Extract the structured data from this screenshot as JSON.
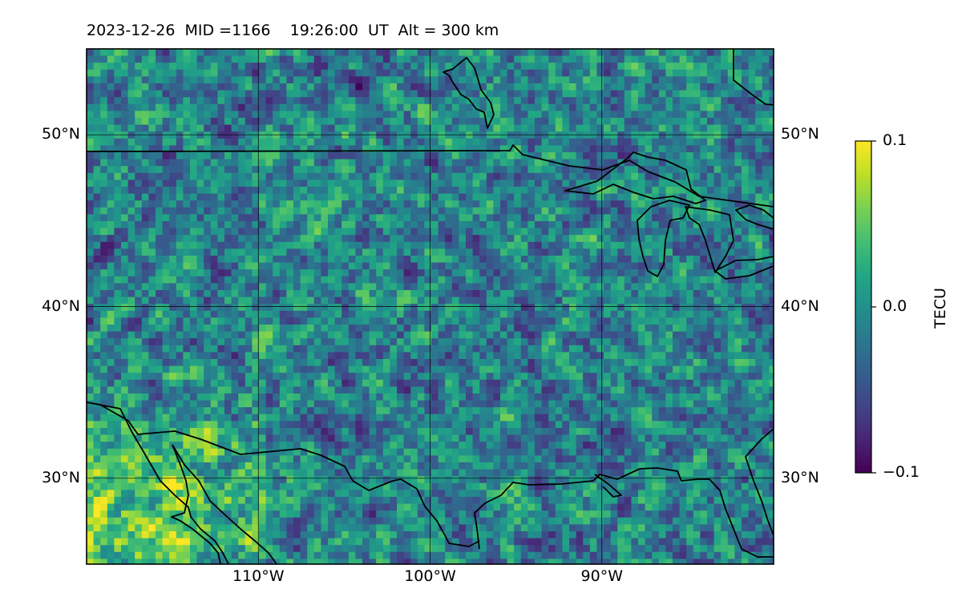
{
  "title": {
    "date": "2023-12-26",
    "mid": "MID =1166",
    "time": "19:26:00  UT",
    "alt": "Alt = 300 km"
  },
  "map": {
    "lon_range": [
      -120,
      -80
    ],
    "lat_range": [
      25,
      55
    ],
    "lon_ticks": [
      {
        "value": -110,
        "label": "110°W"
      },
      {
        "value": -100,
        "label": "100°W"
      },
      {
        "value": -90,
        "label": "90°W"
      }
    ],
    "lat_ticks": [
      {
        "value": 50,
        "label": "50°N"
      },
      {
        "value": 40,
        "label": "40°N"
      },
      {
        "value": 30,
        "label": "30°N"
      }
    ],
    "grid_lon": [
      -110,
      -100,
      -90
    ],
    "grid_lat": [
      30,
      40,
      50
    ],
    "colormap": "viridis",
    "grid": true
  },
  "colorbar": {
    "label": "TECU",
    "min": -0.1,
    "max": 0.1,
    "ticks": [
      {
        "value": 0.1,
        "label": "0.1"
      },
      {
        "value": 0.0,
        "label": "0.0"
      },
      {
        "value": -0.1,
        "label": "−0.1"
      }
    ]
  }
}
